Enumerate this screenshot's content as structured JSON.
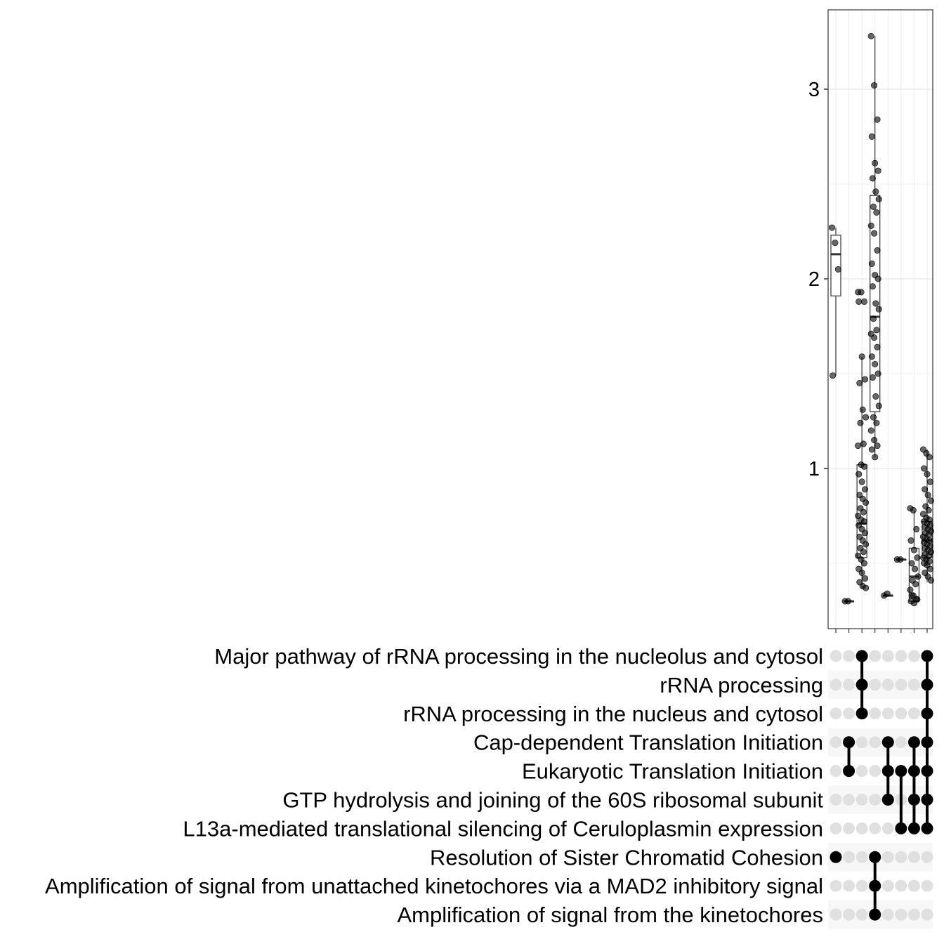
{
  "chart_data": {
    "type": "upset-boxplot",
    "ylim": [
      0.15,
      3.4
    ],
    "yticks": [
      {
        "value": 1,
        "label": "1"
      },
      {
        "value": 2,
        "label": "2"
      },
      {
        "value": 3,
        "label": "3"
      }
    ],
    "grid": true,
    "sets": [
      "Major pathway of rRNA processing in the nucleolus and cytosol",
      "rRNA processing",
      "rRNA processing in the nucleus and cytosol",
      "Cap-dependent Translation Initiation",
      "Eukaryotic Translation Initiation",
      "GTP hydrolysis and joining of the 60S ribosomal subunit",
      "L13a-mediated translational silencing of Ceruloplasmin expression",
      "Resolution of Sister Chromatid Cohesion",
      "Amplification  of signal from unattached  kinetochores via a MAD2  inhibitory signal",
      "Amplification of signal from the kinetochores"
    ],
    "intersections": [
      {
        "members": [
          7
        ],
        "box": {
          "q1": 1.91,
          "median": 2.13,
          "q3": 2.23,
          "lower": 1.49,
          "upper": 2.27
        },
        "points": [
          2.27,
          2.19,
          2.05,
          1.49
        ]
      },
      {
        "members": [
          3,
          4
        ],
        "box": {
          "q1": 0.3,
          "median": 0.3,
          "q3": 0.3,
          "lower": 0.3,
          "upper": 0.3
        },
        "points": [
          0.3,
          0.3
        ]
      },
      {
        "members": [
          0,
          1,
          2
        ],
        "box": {
          "q1": 0.53,
          "median": 0.71,
          "q3": 1.02,
          "lower": 0.37,
          "upper": 1.59
        },
        "points": [
          1.93,
          1.93,
          1.88,
          1.88,
          1.59,
          1.47,
          1.45,
          1.31,
          1.27,
          1.24,
          1.13,
          1.12,
          1.02,
          1.01,
          0.97,
          0.93,
          0.89,
          0.86,
          0.84,
          0.82,
          0.79,
          0.77,
          0.75,
          0.73,
          0.72,
          0.7,
          0.68,
          0.66,
          0.64,
          0.62,
          0.6,
          0.58,
          0.56,
          0.54,
          0.52,
          0.5,
          0.47,
          0.45,
          0.42,
          0.4,
          0.38,
          0.37
        ]
      },
      {
        "members": [
          7,
          8,
          9
        ],
        "box": {
          "q1": 1.3,
          "median": 1.8,
          "q3": 2.44,
          "lower": 1.06,
          "upper": 3.28
        },
        "points": [
          3.28,
          3.02,
          2.84,
          2.75,
          2.61,
          2.57,
          2.53,
          2.46,
          2.42,
          2.38,
          2.35,
          2.28,
          2.24,
          2.15,
          2.08,
          2.02,
          2.0,
          1.96,
          1.87,
          1.84,
          1.79,
          1.73,
          1.71,
          1.69,
          1.64,
          1.59,
          1.55,
          1.5,
          1.48,
          1.38,
          1.33,
          1.27,
          1.24,
          1.2,
          1.15,
          1.12,
          1.1,
          1.06
        ]
      },
      {
        "members": [
          3,
          4,
          5
        ],
        "box": {
          "q1": 0.33,
          "median": 0.33,
          "q3": 0.33,
          "lower": 0.33,
          "upper": 0.33
        },
        "points": [
          0.33,
          0.34
        ]
      },
      {
        "members": [
          4,
          6
        ],
        "box": {
          "q1": 0.52,
          "median": 0.52,
          "q3": 0.52,
          "lower": 0.52,
          "upper": 0.52
        },
        "points": [
          0.52,
          0.52
        ]
      },
      {
        "members": [
          3,
          4,
          5,
          6
        ],
        "box": {
          "q1": 0.3,
          "median": 0.43,
          "q3": 0.58,
          "lower": 0.29,
          "upper": 0.78
        },
        "points": [
          0.79,
          0.78,
          0.68,
          0.62,
          0.57,
          0.53,
          0.5,
          0.47,
          0.43,
          0.41,
          0.39,
          0.36,
          0.33,
          0.31,
          0.3,
          0.29,
          0.31,
          0.33
        ]
      },
      {
        "members": [
          0,
          1,
          2,
          3,
          4,
          5,
          6
        ],
        "box": {
          "q1": 0.53,
          "median": 0.62,
          "q3": 0.72,
          "lower": 0.4,
          "upper": 1.1
        },
        "points": [
          1.1,
          1.08,
          1.06,
          1.0,
          0.97,
          0.93,
          0.89,
          0.86,
          0.83,
          0.8,
          0.78,
          0.76,
          0.74,
          0.73,
          0.72,
          0.71,
          0.7,
          0.69,
          0.68,
          0.67,
          0.66,
          0.65,
          0.64,
          0.63,
          0.62,
          0.61,
          0.6,
          0.59,
          0.58,
          0.57,
          0.56,
          0.55,
          0.54,
          0.53,
          0.52,
          0.51,
          0.5,
          0.49,
          0.47,
          0.45,
          0.43,
          0.41
        ]
      }
    ]
  }
}
